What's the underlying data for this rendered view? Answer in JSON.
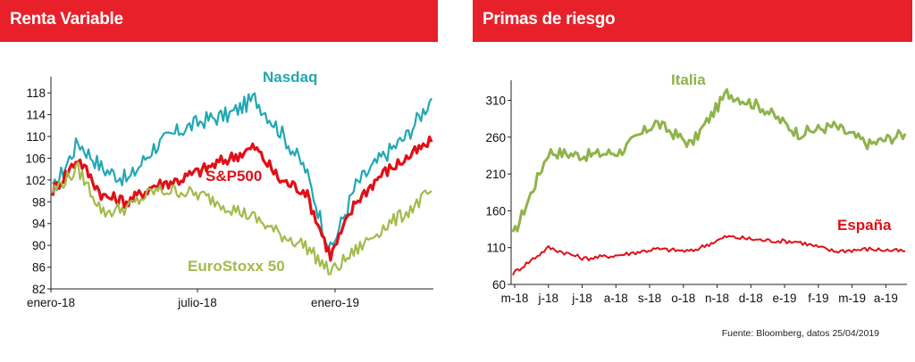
{
  "source_note": "Fuente: Bloomberg, datos 25/04/2019",
  "chart_data": [
    {
      "type": "line",
      "title": "Renta Variable",
      "xlabel": "",
      "ylabel": "",
      "ylim": [
        82,
        120
      ],
      "yticks": [
        82,
        86,
        90,
        94,
        98,
        102,
        106,
        110,
        114,
        118
      ],
      "x_tick_labels": [
        "enero-18",
        "julio-18",
        "enero-19"
      ],
      "x": [
        "2018-01",
        "2018-02",
        "2018-03",
        "2018-04",
        "2018-05",
        "2018-06",
        "2018-07",
        "2018-08",
        "2018-09",
        "2018-10",
        "2018-11",
        "2018-12",
        "2019-01",
        "2019-02",
        "2019-03",
        "2019-04"
      ],
      "grid": false,
      "legend": "inline labels",
      "series": [
        {
          "name": "Nasdaq",
          "color": "#22a7b4",
          "values": [
            100,
            109,
            104,
            102,
            108,
            111,
            113,
            114,
            117,
            111,
            104,
            89,
            101,
            106,
            110,
            117
          ]
        },
        {
          "name": "S&P500",
          "color": "#e10f17",
          "values": [
            100,
            106,
            99,
            98,
            101,
            102,
            104,
            106,
            108,
            102,
            100,
            88,
            98,
            103,
            106,
            109
          ]
        },
        {
          "name": "EuroStoxx 50",
          "color": "#a2bb4a",
          "values": [
            100,
            104,
            96,
            97,
            100,
            100,
            99,
            97,
            95,
            92,
            90,
            85,
            89,
            93,
            96,
            100
          ]
        }
      ],
      "label_texts": [
        "Nasdaq",
        "S&P500",
        "EuroStoxx 50"
      ]
    },
    {
      "type": "line",
      "title": "Primas de riesgo",
      "xlabel": "",
      "ylabel": "",
      "ylim": [
        60,
        330
      ],
      "yticks": [
        60,
        110,
        160,
        210,
        260,
        310
      ],
      "x_tick_labels": [
        "m-18",
        "j-18",
        "j-18",
        "a-18",
        "s-18",
        "o-18",
        "n-18",
        "d-18",
        "e-19",
        "f-19",
        "m-19",
        "a-19"
      ],
      "x": [
        "2018-05",
        "2018-06",
        "2018-07",
        "2018-08",
        "2018-09",
        "2018-10",
        "2018-11",
        "2018-12",
        "2019-01",
        "2019-02",
        "2019-03",
        "2019-04"
      ],
      "grid": false,
      "legend": "inline labels",
      "series": [
        {
          "name": "Italia",
          "color": "#8fb34a",
          "values": [
            125,
            240,
            235,
            240,
            280,
            250,
            320,
            300,
            265,
            275,
            250,
            265
          ]
        },
        {
          "name": "España",
          "color": "#e10f17",
          "values": [
            75,
            110,
            95,
            100,
            108,
            105,
            125,
            120,
            118,
            105,
            108,
            105
          ]
        }
      ],
      "label_texts": [
        "Italia",
        "España"
      ]
    }
  ]
}
